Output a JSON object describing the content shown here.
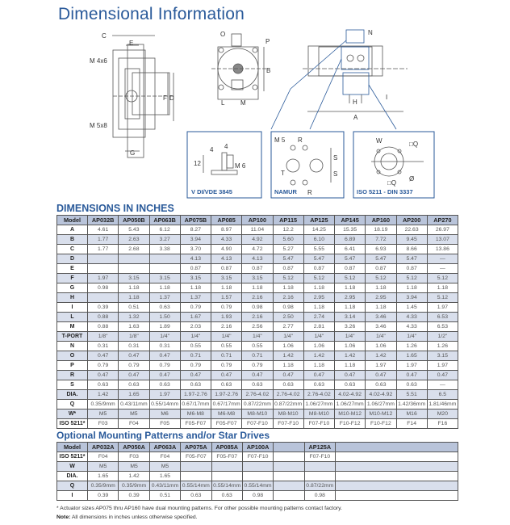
{
  "title": "Dimensional Information",
  "drawings": {
    "labels_front": [
      "C",
      "E",
      "M 4x6",
      "M 5x8",
      "F",
      "D",
      "G"
    ],
    "labels_side": [
      "O",
      "P",
      "B",
      "L",
      "M"
    ],
    "labels_top": [
      "N",
      "H",
      "I",
      "A"
    ],
    "vdi": {
      "caption": "V DI/VDE 3845",
      "labels": [
        "4",
        "4",
        "12",
        "M 6"
      ]
    },
    "namur": {
      "caption": "NAMUR",
      "labels": [
        "M 5",
        "R",
        "S",
        "S",
        "T",
        "R"
      ]
    },
    "iso": {
      "caption": "ISO 5211 - DIN 3337",
      "labels": [
        "W",
        "□Q",
        "□Q",
        "Ø"
      ]
    }
  },
  "main_table": {
    "heading": "DIMENSIONS IN INCHES",
    "columns": [
      "Model",
      "AP032B",
      "AP050B",
      "AP063B",
      "AP075B",
      "AP085",
      "AP100",
      "AP115",
      "AP125",
      "AP145",
      "AP160",
      "AP200",
      "AP270"
    ],
    "rows": [
      [
        "A",
        "4.61",
        "5.43",
        "6.12",
        "8.27",
        "8.97",
        "11.04",
        "12.2",
        "14.25",
        "15.35",
        "18.19",
        "22.63",
        "26.97"
      ],
      [
        "B",
        "1.77",
        "2.63",
        "3.27",
        "3.94",
        "4.33",
        "4.92",
        "5.60",
        "6.10",
        "6.89",
        "7.72",
        "9.45",
        "13.07"
      ],
      [
        "C",
        "1.77",
        "2.68",
        "3.38",
        "3.70",
        "4.90",
        "4.72",
        "5.27",
        "5.55",
        "6.41",
        "6.93",
        "8.66",
        "13.86"
      ],
      [
        "D",
        "",
        "",
        "",
        "4.13",
        "4.13",
        "4.13",
        "5.47",
        "5.47",
        "5.47",
        "5.47",
        "5.47",
        "—"
      ],
      [
        "E",
        "",
        "",
        "",
        "0.87",
        "0.87",
        "0.87",
        "0.87",
        "0.87",
        "0.87",
        "0.87",
        "0.87",
        "—"
      ],
      [
        "F",
        "1.97",
        "3.15",
        "3.15",
        "3.15",
        "3.15",
        "3.15",
        "5.12",
        "5.12",
        "5.12",
        "5.12",
        "5.12",
        "5.12"
      ],
      [
        "G",
        "0.98",
        "1.18",
        "1.18",
        "1.18",
        "1.18",
        "1.18",
        "1.18",
        "1.18",
        "1.18",
        "1.18",
        "1.18",
        "1.18"
      ],
      [
        "H",
        "",
        "1.18",
        "1.37",
        "1.37",
        "1.57",
        "2.16",
        "2.16",
        "2.95",
        "2.95",
        "2.95",
        "3.94",
        "5.12"
      ],
      [
        "I",
        "0.39",
        "0.51",
        "0.63",
        "0.79",
        "0.79",
        "0.98",
        "0.98",
        "1.18",
        "1.18",
        "1.18",
        "1.45",
        "1.97"
      ],
      [
        "L",
        "0.88",
        "1.32",
        "1.50",
        "1.67",
        "1.93",
        "2.16",
        "2.50",
        "2.74",
        "3.14",
        "3.46",
        "4.33",
        "6.53"
      ],
      [
        "M",
        "0.88",
        "1.63",
        "1.89",
        "2.03",
        "2.16",
        "2.56",
        "2.77",
        "2.81",
        "3.26",
        "3.46",
        "4.33",
        "6.53"
      ],
      [
        "T-PORT",
        "1/8\"",
        "1/8\"",
        "1/4\"",
        "1/4\"",
        "1/4\"",
        "1/4\"",
        "1/4\"",
        "1/4\"",
        "1/4\"",
        "1/4\"",
        "1/4\"",
        "1/2\""
      ],
      [
        "N",
        "0.31",
        "0.31",
        "0.31",
        "0.55",
        "0.55",
        "0.55",
        "1.06",
        "1.06",
        "1.06",
        "1.06",
        "1.26",
        "1.26"
      ],
      [
        "O",
        "0.47",
        "0.47",
        "0.47",
        "0.71",
        "0.71",
        "0.71",
        "1.42",
        "1.42",
        "1.42",
        "1.42",
        "1.65",
        "3.15"
      ],
      [
        "P",
        "0.79",
        "0.79",
        "0.79",
        "0.79",
        "0.79",
        "0.79",
        "1.18",
        "1.18",
        "1.18",
        "1.97",
        "1.97",
        "1.97"
      ],
      [
        "R",
        "0.47",
        "0.47",
        "0.47",
        "0.47",
        "0.47",
        "0.47",
        "0.47",
        "0.47",
        "0.47",
        "0.47",
        "0.47",
        "0.47"
      ],
      [
        "S",
        "0.63",
        "0.63",
        "0.63",
        "0.63",
        "0.63",
        "0.63",
        "0.63",
        "0.63",
        "0.63",
        "0.63",
        "0.63",
        "—"
      ],
      [
        "DIA.",
        "1.42",
        "1.65",
        "1.97",
        "1.97-2.76",
        "1.97-2.76",
        "2.76-4.02",
        "2.76-4.02",
        "2.76-4.02",
        "4.02-4.92",
        "4.02-4.92",
        "5.51",
        "6.5"
      ],
      [
        "Q",
        "0.35/9mm",
        "0.43/11mm",
        "0.55/14mm",
        "0.67/17mm",
        "0.67/17mm",
        "0.87/22mm",
        "0.87/22mm",
        "1.06/27mm",
        "1.06/27mm",
        "1.06/27mm",
        "1.42/36mm",
        "1.81/46mm"
      ],
      [
        "W*",
        "M5",
        "M5",
        "M6",
        "M6-M8",
        "M6-M8",
        "M8-M10",
        "M8-M10",
        "M8-M10",
        "M10-M12",
        "M10-M12",
        "M16",
        "M20"
      ],
      [
        "ISO 5211*",
        "F03",
        "F04",
        "F05",
        "F05-F07",
        "F05-F07",
        "F07-F10",
        "F07-F10",
        "F07-F10",
        "F10-F12",
        "F10-F12",
        "F14",
        "F16"
      ]
    ]
  },
  "optional_table": {
    "heading": "Optional Mounting Patterns and/or Star Drives",
    "columns": [
      "Model",
      "AP032A",
      "AP050A",
      "AP063A",
      "AP075A",
      "AP085A",
      "AP100A",
      "",
      "AP125A",
      ""
    ],
    "rows": [
      [
        "ISO 5211*",
        "F04",
        "F03",
        "F04",
        "F05-F07",
        "F05-F07",
        "F07-F10",
        "",
        "F07-F10",
        ""
      ],
      [
        "W",
        "M5",
        "M5",
        "M5",
        "",
        "",
        "",
        "",
        "",
        ""
      ],
      [
        "DIA.",
        "1.65",
        "1.42",
        "1.65",
        "",
        "",
        "",
        "",
        "",
        ""
      ],
      [
        "Q",
        "0.35/9mm",
        "0.35/9mm",
        "0.43/11mm",
        "0.55/14mm",
        "0.55/14mm",
        "0.55/14mm",
        "",
        "0.87/22mm",
        ""
      ],
      [
        "I",
        "0.39",
        "0.39",
        "0.51",
        "0.63",
        "0.63",
        "0.98",
        "",
        "0.98",
        ""
      ]
    ]
  },
  "footnotes": {
    "asterisk": "* Actuator sizes AP075 thru AP160 have dual mounting patterns. For other possible mounting patterns contact factory.",
    "note_label": "Note:",
    "note_text": " All dimensions in inches unless otherwise specified."
  },
  "colors": {
    "heading": "#2a5a9a",
    "header_bg": "#b9c4da",
    "row_shade": "#d9dfec"
  }
}
